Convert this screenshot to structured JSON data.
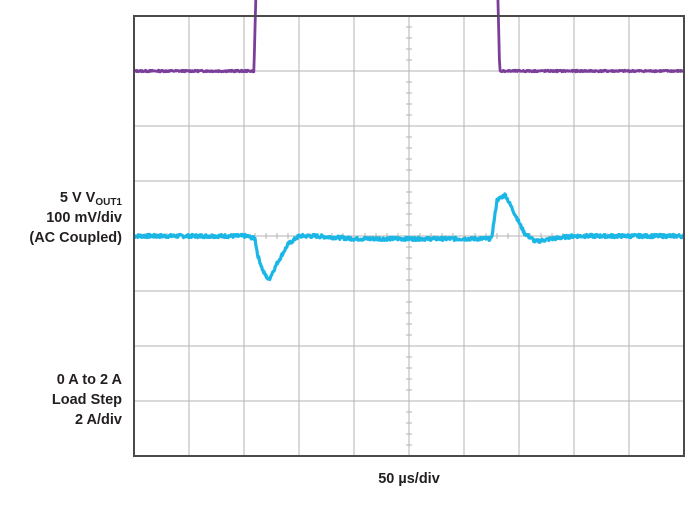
{
  "chart_data": {
    "type": "line",
    "x_scale_label": "50 µs/div",
    "divisions": {
      "x": 10,
      "y": 8
    },
    "grid": true,
    "channels": [
      {
        "id": "ch1",
        "label_lines": [
          "5 V V",
          "OUT1",
          "100 mV/div",
          "(AC Coupled)"
        ],
        "color": "#1ab7e6",
        "volts_per_div": 0.1,
        "volts_per_div_unit": "V/div",
        "baseline_div": 4.0,
        "x": [
          0,
          2.05,
          2.2,
          2.25,
          2.35,
          2.45,
          2.6,
          2.8,
          3.0,
          3.3,
          4.0,
          6.5,
          6.6,
          6.75,
          6.9,
          7.1,
          7.3,
          7.6,
          8.0,
          10
        ],
        "y": [
          0,
          0,
          -0.05,
          -0.35,
          -0.65,
          -0.8,
          -0.5,
          -0.15,
          0,
          0,
          -0.05,
          -0.05,
          0.65,
          0.75,
          0.45,
          0.05,
          -0.1,
          -0.05,
          0,
          0
        ]
      },
      {
        "id": "ch2",
        "label_lines": [
          "0 A to 2 A",
          "Load Step",
          "2 A/div"
        ],
        "color": "#7b3f99",
        "amps_per_div": 2,
        "amps_per_div_unit": "A/div",
        "baseline_div": 1.0,
        "x": [
          0,
          2.18,
          2.23,
          2.3,
          3.0,
          5.0,
          6.6,
          6.65,
          10
        ],
        "y": [
          0,
          0,
          1.9,
          2.0,
          2.0,
          1.98,
          1.98,
          0,
          0
        ]
      }
    ]
  },
  "colors": {
    "grid": "#b3b3b3",
    "frame": "#4a4a4a",
    "text": "#231f20"
  }
}
